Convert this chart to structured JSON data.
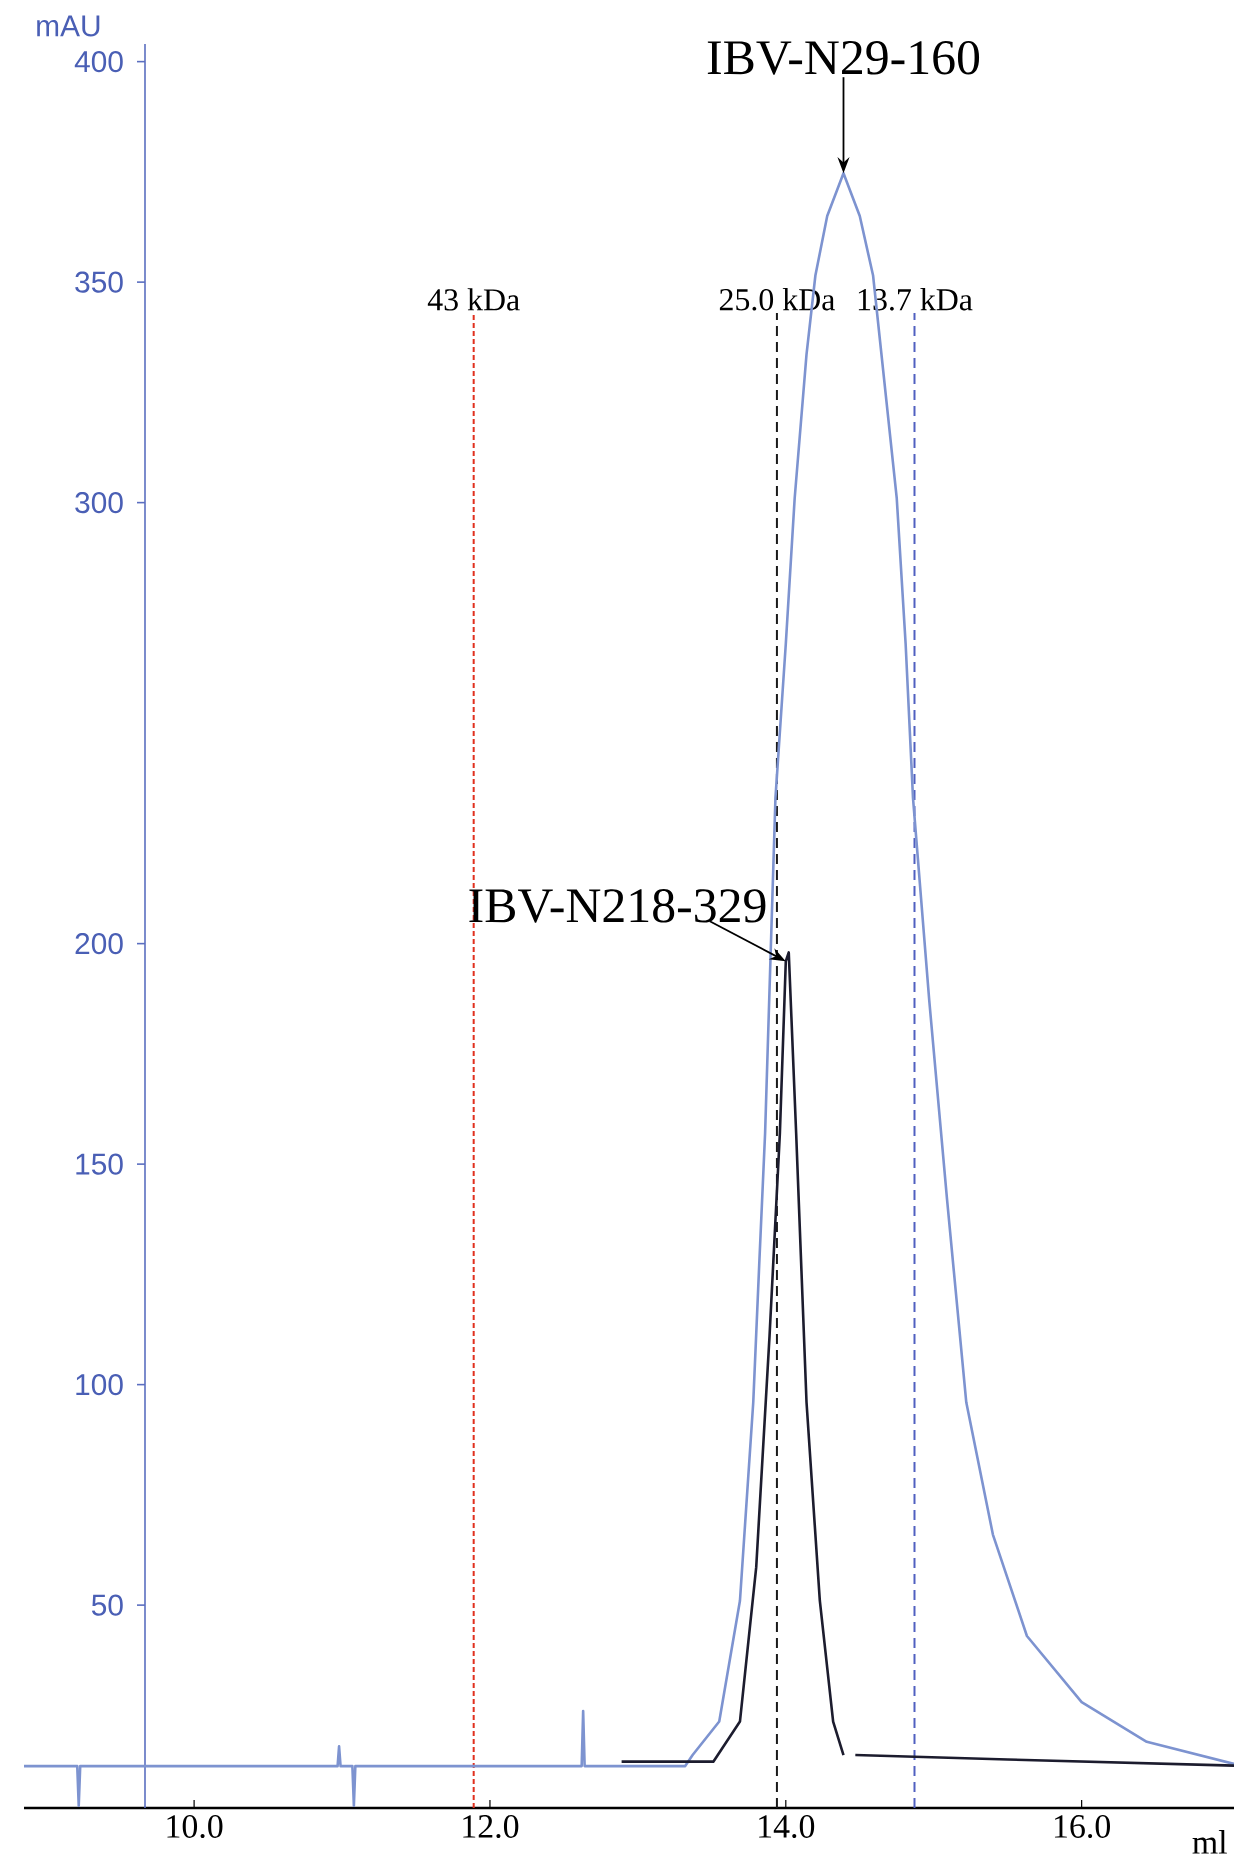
{
  "chart_data": {
    "type": "line",
    "xlabel": "ml",
    "ylabel": "mAU",
    "xlim": [
      8.85,
      17.03
    ],
    "ylim": [
      4,
      404
    ],
    "xticks": [
      {
        "value": 10,
        "label": "10.0"
      },
      {
        "value": 12,
        "label": "12.0"
      },
      {
        "value": 14,
        "label": "14.0"
      },
      {
        "value": 16,
        "label": "16.0"
      }
    ],
    "yticks": [
      50,
      100,
      150,
      200,
      300,
      350,
      400
    ],
    "series": [
      {
        "color": "#7d93d0",
        "x": [
          8.85,
          9.21,
          9.22,
          9.23,
          10.97,
          10.98,
          10.99,
          11.07,
          11.08,
          11.09,
          12.62,
          12.63,
          12.64,
          13.32,
          13.37,
          13.55,
          13.69,
          13.78,
          13.82,
          13.86,
          13.93,
          14.0,
          14.06,
          14.14,
          14.2,
          14.28,
          14.39,
          14.5,
          14.59,
          14.75,
          14.81,
          14.86,
          14.97,
          15.09,
          15.22,
          15.4,
          15.63,
          16.0,
          16.44,
          17.03
        ],
        "values": [
          13.5,
          13.5,
          4.5,
          13.5,
          13.5,
          18,
          13.5,
          13.5,
          4.5,
          13.5,
          13.5,
          26,
          13.5,
          13.5,
          16,
          23.6,
          51,
          96,
          127,
          157,
          233,
          268,
          301,
          333.6,
          351.5,
          365,
          374.7,
          365,
          351.5,
          301,
          268,
          233,
          187,
          142,
          96,
          66,
          43,
          28,
          19,
          14
        ]
      },
      {
        "color": "#1c1c2e",
        "x": [
          12.89,
          13.51,
          13.69,
          13.8,
          13.89,
          13.96,
          14.0,
          14.02,
          14.07,
          14.14,
          14.23,
          14.32,
          14.39,
          14.43,
          14.47,
          15.5,
          17.03
        ],
        "values": [
          14.5,
          14.5,
          23.6,
          58.6,
          111,
          157,
          196,
          198,
          157,
          96,
          51,
          23.6,
          16,
          null,
          16,
          15,
          13.6
        ]
      }
    ],
    "ref_lines": [
      {
        "axis": "x",
        "value": 11.89,
        "label": "43 kDa",
        "color": "#e0301e",
        "line_style": "dotted"
      },
      {
        "axis": "x",
        "value": 13.94,
        "label": "25.0 kDa",
        "color": "#1a1a1a",
        "line_style": "dashed"
      },
      {
        "axis": "x",
        "value": 14.87,
        "label": "13.7 kDa",
        "color": "#5060c0",
        "line_style": "dashed"
      }
    ],
    "annotations": [
      {
        "text": "IBV-N29-160",
        "x": 14.39,
        "y": 374.7
      },
      {
        "text": "IBV-N218-329",
        "x": 14.0,
        "y": 196
      }
    ]
  }
}
